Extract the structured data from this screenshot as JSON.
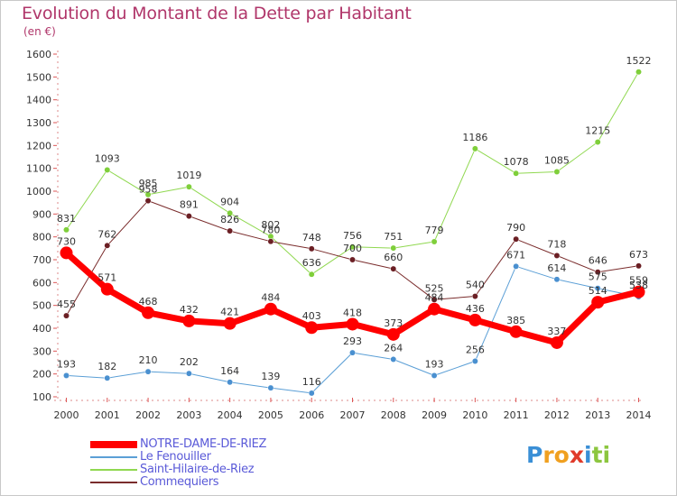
{
  "title": "Evolution du Montant de la Dette par Habitant",
  "subtitle": "(en €)",
  "logo": {
    "letters": [
      "P",
      "r",
      "o",
      "x",
      "i",
      "t",
      "i"
    ],
    "colors": [
      "#3a8fd6",
      "#f0a020",
      "#f0a020",
      "#e03a2a",
      "#3a8fd6",
      "#8cc63f",
      "#8cc63f"
    ]
  },
  "chart_data": {
    "type": "line",
    "x": [
      2000,
      2001,
      2002,
      2003,
      2004,
      2005,
      2006,
      2007,
      2008,
      2009,
      2010,
      2011,
      2012,
      2013,
      2014
    ],
    "ylim": [
      100,
      1600
    ],
    "yticks": [
      100,
      200,
      300,
      400,
      500,
      600,
      700,
      800,
      900,
      1000,
      1100,
      1200,
      1300,
      1400,
      1500,
      1600
    ],
    "grid": false,
    "legend_position": "bottom-left",
    "series": [
      {
        "name": "Saint-Hilaire-de-Riez",
        "color": "#90d850",
        "marker": "#7fcf3a",
        "width": 1,
        "values": [
          831,
          1093,
          985,
          1019,
          904,
          802,
          636,
          756,
          751,
          779,
          1186,
          1078,
          1085,
          1215,
          1522
        ],
        "labels": [
          "831",
          "1093",
          "985",
          "1019",
          "904",
          "802",
          "636",
          "756",
          "751",
          "779",
          "1186",
          "1078",
          "1085",
          "1215",
          "1522"
        ]
      },
      {
        "name": "Commequiers",
        "color": "#7a2c2c",
        "marker": "#6b1f24",
        "width": 1,
        "values": [
          455,
          762,
          958,
          891,
          826,
          780,
          748,
          700,
          660,
          525,
          540,
          790,
          718,
          646,
          673
        ],
        "labels": [
          "455",
          "762",
          "958",
          "891",
          "826",
          "780",
          "748",
          "700",
          "660",
          "525",
          "540",
          "790",
          "718",
          "646",
          "673"
        ]
      },
      {
        "name": "Le Fenouiller",
        "color": "#5b9fd6",
        "marker": "#4a90d0",
        "width": 1,
        "values": [
          193,
          182,
          210,
          202,
          164,
          139,
          116,
          293,
          264,
          193,
          256,
          671,
          614,
          575,
          538
        ],
        "labels": [
          "193",
          "182",
          "210",
          "202",
          "164",
          "139",
          "116",
          "293",
          "264",
          "193",
          "256",
          "671",
          "614",
          "575",
          "538"
        ]
      },
      {
        "name": "NOTRE-DAME-DE-RIEZ",
        "color": "#ff0000",
        "marker": "#ff0000",
        "width": 7,
        "values": [
          730,
          571,
          468,
          432,
          421,
          484,
          403,
          418,
          373,
          484,
          436,
          385,
          337,
          514,
          559
        ],
        "labels": [
          "730",
          "571",
          "468",
          "432",
          "421",
          "484",
          "403",
          "418",
          "373",
          "484",
          "436",
          "385",
          "337",
          "514",
          "559"
        ]
      }
    ]
  }
}
